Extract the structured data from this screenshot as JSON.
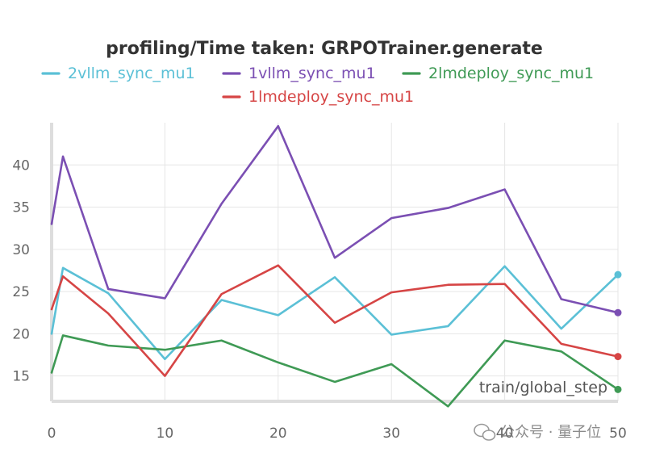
{
  "chart_data": {
    "type": "line",
    "title": "profiling/Time taken: GRPOTrainer.generate",
    "xlabel": "train/global_step",
    "ylabel": "",
    "xlim": [
      0,
      50
    ],
    "ylim": [
      12,
      45
    ],
    "xticks": [
      0,
      10,
      20,
      30,
      40,
      50
    ],
    "yticks": [
      15,
      20,
      25,
      30,
      35,
      40
    ],
    "grid": true,
    "legend_position": "top",
    "series": [
      {
        "name": "2vllm_sync_mu1",
        "color": "#5bc0d6",
        "x": [
          0,
          1,
          5,
          10,
          15,
          20,
          25,
          30,
          35,
          40,
          45,
          50
        ],
        "y": [
          20.0,
          27.8,
          24.8,
          17.0,
          24.0,
          22.2,
          26.7,
          19.9,
          20.9,
          28.0,
          20.6,
          27.0
        ]
      },
      {
        "name": "1vllm_sync_mu1",
        "color": "#7b4fb3",
        "x": [
          0,
          1,
          5,
          10,
          15,
          20,
          25,
          30,
          35,
          40,
          45,
          50
        ],
        "y": [
          33.0,
          41.0,
          25.3,
          24.2,
          35.4,
          44.6,
          29.0,
          33.7,
          34.9,
          37.1,
          24.1,
          22.5
        ]
      },
      {
        "name": "2lmdeploy_sync_mu1",
        "color": "#3f9a55",
        "x": [
          0,
          1,
          5,
          10,
          15,
          20,
          25,
          30,
          35,
          40,
          45,
          50
        ],
        "y": [
          15.4,
          19.8,
          18.6,
          18.1,
          19.2,
          16.6,
          14.3,
          16.4,
          11.4,
          19.2,
          17.9,
          13.4
        ]
      },
      {
        "name": "1lmdeploy_sync_mu1",
        "color": "#d64545",
        "x": [
          0,
          1,
          5,
          10,
          15,
          20,
          25,
          30,
          35,
          40,
          45,
          50
        ],
        "y": [
          22.9,
          26.8,
          22.4,
          15.0,
          24.7,
          28.1,
          21.3,
          24.9,
          25.8,
          25.9,
          18.8,
          17.3
        ]
      }
    ]
  },
  "watermark": {
    "icon": "wechat-icon",
    "text": "公众号 · 量子位"
  }
}
